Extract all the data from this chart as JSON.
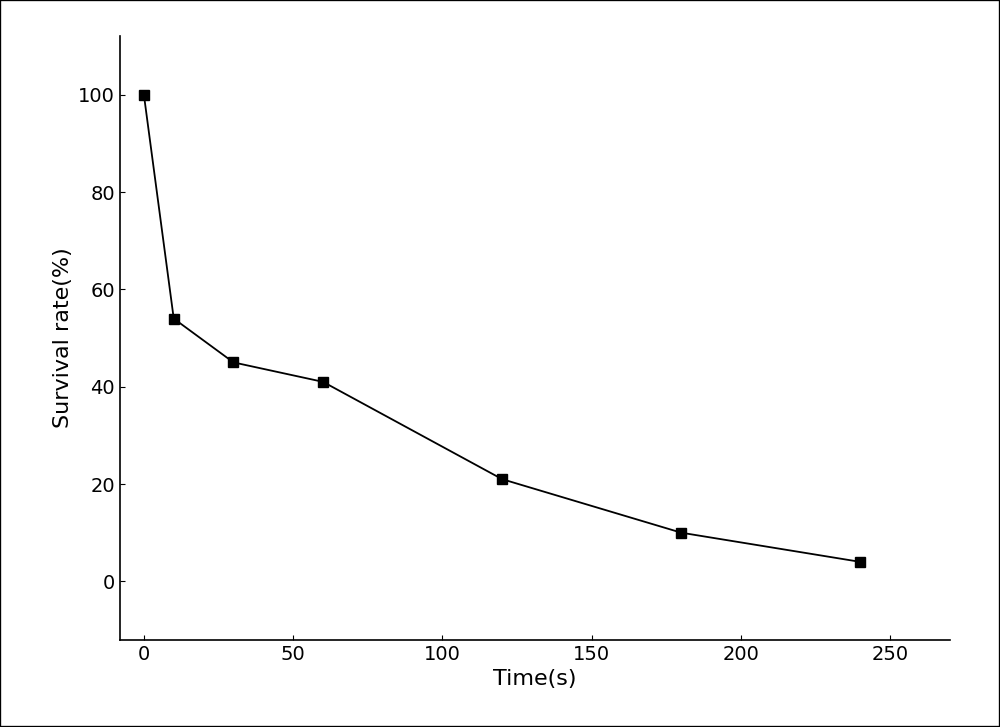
{
  "x": [
    0,
    10,
    30,
    60,
    120,
    180,
    240
  ],
  "y": [
    100,
    54,
    45,
    41,
    21,
    10,
    4
  ],
  "xlabel": "Time(s)",
  "ylabel": "Survival rate(%)",
  "xlim": [
    -8,
    270
  ],
  "ylim": [
    -12,
    112
  ],
  "xticks": [
    0,
    50,
    100,
    150,
    200,
    250
  ],
  "yticks": [
    0,
    20,
    40,
    60,
    80,
    100
  ],
  "line_color": "#000000",
  "marker": "s",
  "marker_color": "#000000",
  "marker_size": 7,
  "linewidth": 1.3,
  "background_color": "#ffffff",
  "axes_bg_color": "#ffffff",
  "xlabel_fontsize": 16,
  "ylabel_fontsize": 16,
  "tick_fontsize": 14,
  "figure_border_color": "#000000",
  "figure_border_linewidth": 1.5
}
